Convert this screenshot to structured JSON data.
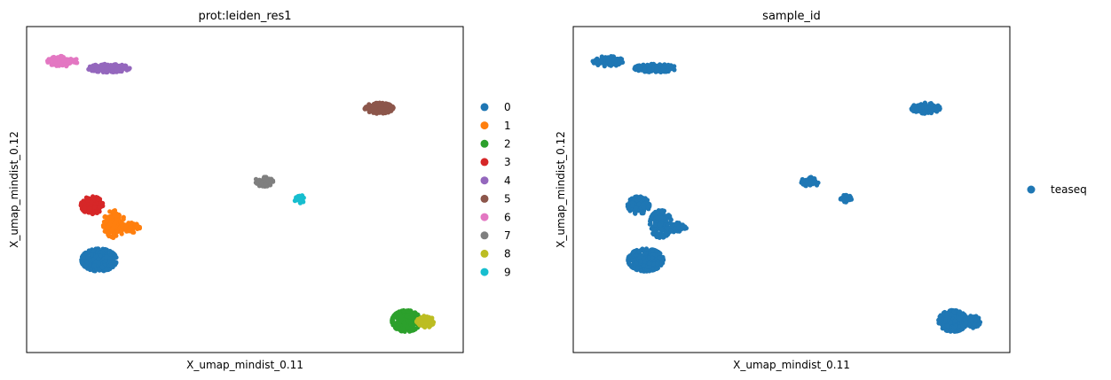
{
  "chart_data": [
    {
      "type": "scatter",
      "title": "prot:leiden_res1",
      "xlabel": "X_umap_mindist_0.11",
      "ylabel": "X_umap_mindist_0.12",
      "xlim": [
        0,
        100
      ],
      "ylim": [
        0,
        100
      ],
      "ticks": false,
      "grid": false,
      "legend_placement": "right",
      "series": [
        {
          "name": "0",
          "color": "#1f77b4",
          "clusters": [
            {
              "x": 15.2,
              "y": 27.5,
              "rx": 4.2,
              "ry": 3.6,
              "n": 320
            }
          ]
        },
        {
          "name": "1",
          "color": "#ff7f0e",
          "clusters": [
            {
              "x": 18.8,
              "y": 39.0,
              "rx": 2.6,
              "ry": 4.4,
              "n": 140
            },
            {
              "x": 22.5,
              "y": 37.8,
              "rx": 2.4,
              "ry": 1.6,
              "n": 60
            }
          ]
        },
        {
          "name": "2",
          "color": "#2ca02c",
          "clusters": [
            {
              "x": 88.5,
              "y": 8.0,
              "rx": 3.4,
              "ry": 3.4,
              "n": 280
            }
          ]
        },
        {
          "name": "3",
          "color": "#d62728",
          "clusters": [
            {
              "x": 13.5,
              "y": 45.0,
              "rx": 2.6,
              "ry": 2.8,
              "n": 160
            }
          ]
        },
        {
          "name": "4",
          "color": "#9467bd",
          "clusters": [
            {
              "x": 17.5,
              "y": 88.8,
              "rx": 5.0,
              "ry": 1.3,
              "n": 140
            }
          ]
        },
        {
          "name": "5",
          "color": "#8c564b",
          "clusters": [
            {
              "x": 82.0,
              "y": 76.0,
              "rx": 3.4,
              "ry": 1.7,
              "n": 140
            }
          ]
        },
        {
          "name": "6",
          "color": "#e377c2",
          "clusters": [
            {
              "x": 6.5,
              "y": 91.0,
              "rx": 3.6,
              "ry": 1.6,
              "n": 100
            }
          ]
        },
        {
          "name": "7",
          "color": "#7f7f7f",
          "clusters": [
            {
              "x": 54.5,
              "y": 52.5,
              "rx": 2.2,
              "ry": 1.5,
              "n": 70
            }
          ]
        },
        {
          "name": "8",
          "color": "#bcbd22",
          "clusters": [
            {
              "x": 93.0,
              "y": 7.8,
              "rx": 2.0,
              "ry": 2.0,
              "n": 110
            }
          ]
        },
        {
          "name": "9",
          "color": "#17becf",
          "clusters": [
            {
              "x": 63.0,
              "y": 47.0,
              "rx": 1.3,
              "ry": 1.3,
              "n": 30
            }
          ]
        }
      ]
    },
    {
      "type": "scatter",
      "title": "sample_id",
      "xlabel": "X_umap_mindist_0.11",
      "ylabel": "X_umap_mindist_0.12",
      "xlim": [
        0,
        100
      ],
      "ylim": [
        0,
        100
      ],
      "ticks": false,
      "grid": false,
      "legend_placement": "right",
      "series": [
        {
          "name": "teaseq",
          "color": "#1f77b4",
          "clusters": [
            {
              "x": 6.2,
              "y": 91.0,
              "rx": 3.6,
              "ry": 1.6,
              "n": 100
            },
            {
              "x": 17.5,
              "y": 88.8,
              "rx": 5.0,
              "ry": 1.3,
              "n": 140
            },
            {
              "x": 82.0,
              "y": 76.0,
              "rx": 3.4,
              "ry": 1.7,
              "n": 140
            },
            {
              "x": 54.5,
              "y": 52.5,
              "rx": 2.2,
              "ry": 1.5,
              "n": 70
            },
            {
              "x": 63.0,
              "y": 47.0,
              "rx": 1.3,
              "ry": 1.3,
              "n": 30
            },
            {
              "x": 13.5,
              "y": 45.0,
              "rx": 2.6,
              "ry": 2.8,
              "n": 160
            },
            {
              "x": 18.8,
              "y": 39.0,
              "rx": 2.6,
              "ry": 4.4,
              "n": 140
            },
            {
              "x": 22.5,
              "y": 37.8,
              "rx": 2.4,
              "ry": 1.6,
              "n": 60
            },
            {
              "x": 15.2,
              "y": 27.5,
              "rx": 4.2,
              "ry": 3.6,
              "n": 320
            },
            {
              "x": 88.5,
              "y": 8.0,
              "rx": 3.4,
              "ry": 3.4,
              "n": 280
            },
            {
              "x": 93.0,
              "y": 7.8,
              "rx": 2.0,
              "ry": 2.0,
              "n": 110
            }
          ]
        }
      ]
    }
  ]
}
